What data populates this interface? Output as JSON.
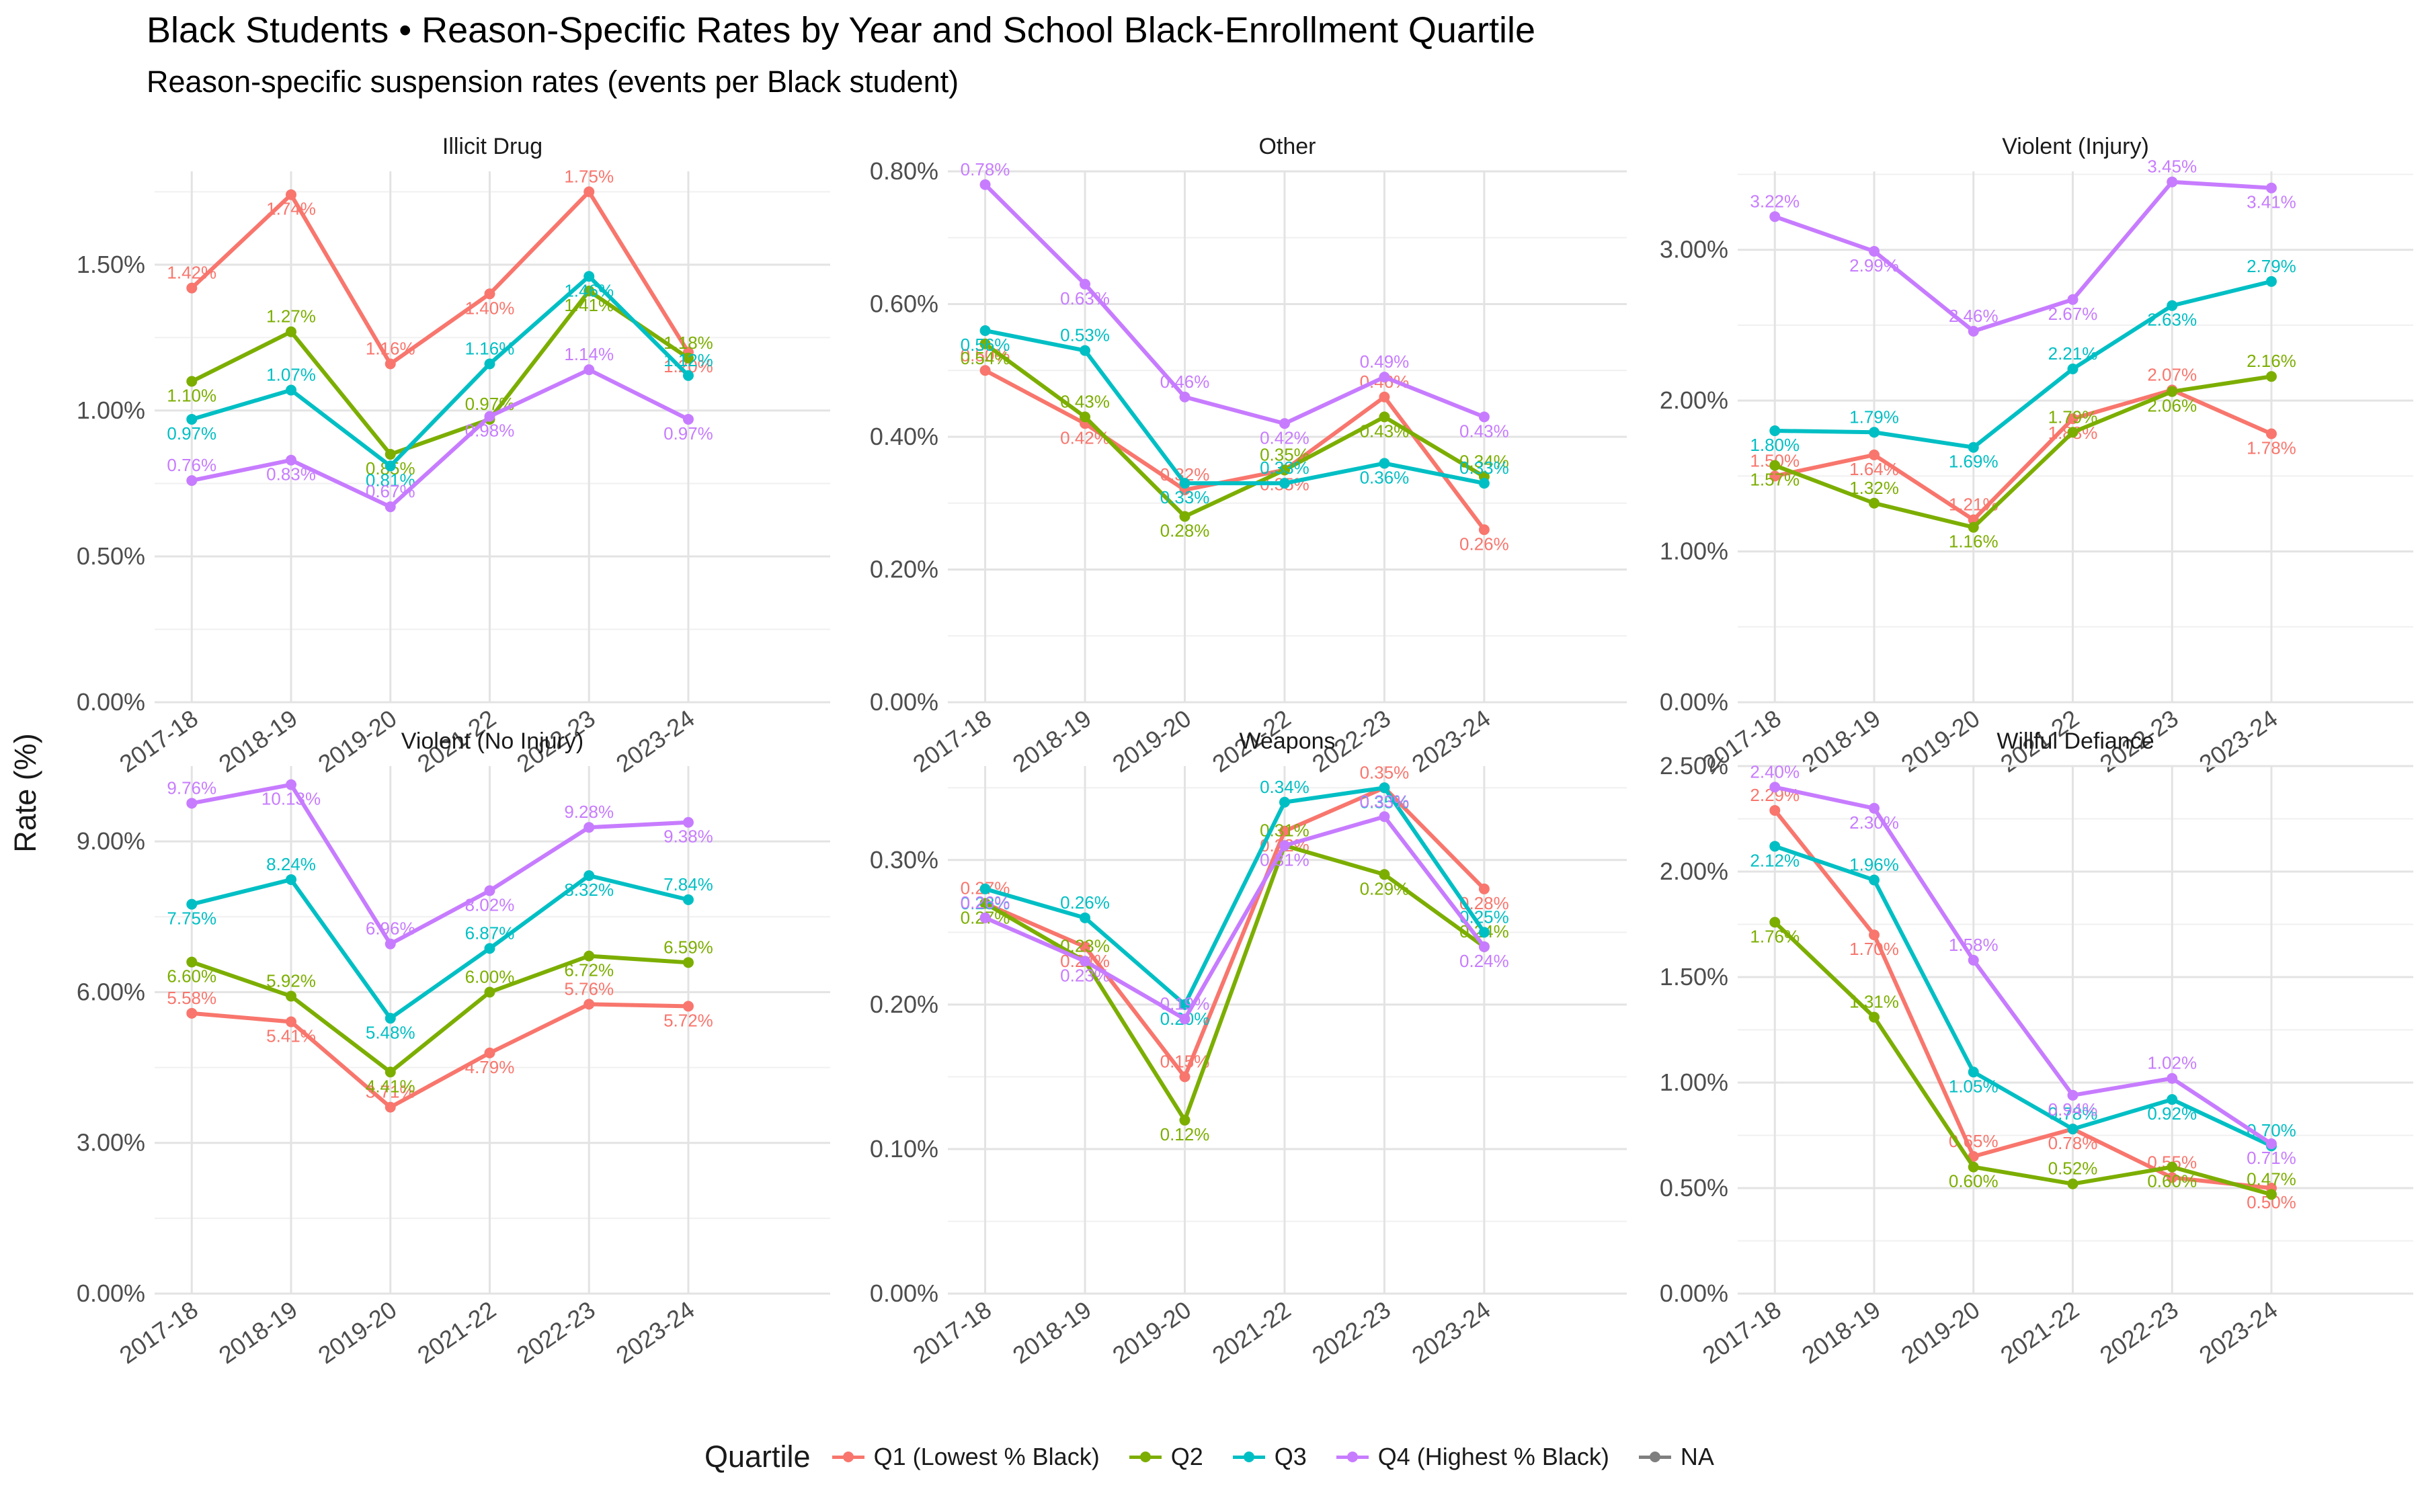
{
  "title": "Black Students • Reason-Specific Rates by Year and School Black-Enrollment Quartile",
  "subtitle": "Reason-specific suspension rates (events per Black student)",
  "chart_data": {
    "type": "line",
    "ylabel": "Rate (%)",
    "legend_title": "Quartile",
    "legend_position": "bottom",
    "grid": true,
    "categories": [
      "2017-18",
      "2018-19",
      "2019-20",
      "2021-22",
      "2022-23",
      "2023-24"
    ],
    "series_meta": [
      {
        "name": "Q1 (Lowest % Black)",
        "color": "#F8766D"
      },
      {
        "name": "Q2",
        "color": "#7CAE00"
      },
      {
        "name": "Q3",
        "color": "#00BFC4"
      },
      {
        "name": "Q4 (Highest % Black)",
        "color": "#C77CFF"
      },
      {
        "name": "NA",
        "color": "#7F7F7F"
      }
    ],
    "panels": [
      {
        "title": "Illicit Drug",
        "ylim": [
          0,
          1.82
        ],
        "yticks": [
          0,
          0.5,
          1.0,
          1.5
        ],
        "yticklabels": [
          "0.00%",
          "0.50%",
          "1.00%",
          "1.50%"
        ],
        "series": [
          {
            "name": "Q1 (Lowest % Black)",
            "values": [
              1.42,
              1.74,
              1.16,
              1.4,
              1.75,
              1.2
            ],
            "labels": [
              "1.42%",
              "1.74%",
              "1.16%",
              "1.40%",
              "1.75%",
              "1.20%"
            ]
          },
          {
            "name": "Q2",
            "values": [
              1.1,
              1.27,
              0.85,
              0.97,
              1.41,
              1.18
            ],
            "labels": [
              "1.10%",
              "1.27%",
              "0.85%",
              "0.97%",
              "1.41%",
              "1.18%"
            ]
          },
          {
            "name": "Q3",
            "values": [
              0.97,
              1.07,
              0.81,
              1.16,
              1.46,
              1.12
            ],
            "labels": [
              "0.97%",
              "1.07%",
              "0.81%",
              "1.16%",
              "1.46%",
              "1.12%"
            ]
          },
          {
            "name": "Q4 (Highest % Black)",
            "values": [
              0.76,
              0.83,
              0.67,
              0.98,
              1.14,
              0.97
            ],
            "labels": [
              "0.76%",
              "0.83%",
              "0.67%",
              "0.98%",
              "1.14%",
              "0.97%"
            ]
          }
        ]
      },
      {
        "title": "Other",
        "ylim": [
          0,
          0.8
        ],
        "yticks": [
          0,
          0.2,
          0.4,
          0.6,
          0.8
        ],
        "yticklabels": [
          "0.00%",
          "0.20%",
          "0.40%",
          "0.60%",
          "0.80%"
        ],
        "series": [
          {
            "name": "Q1 (Lowest % Black)",
            "values": [
              0.5,
              0.42,
              0.32,
              0.35,
              0.46,
              0.26
            ],
            "labels": [
              "0.50%",
              "0.42%",
              "0.32%",
              "0.35%",
              "0.46%",
              "0.26%"
            ]
          },
          {
            "name": "Q2",
            "values": [
              0.54,
              0.43,
              0.28,
              0.35,
              0.43,
              0.34
            ],
            "labels": [
              "0.54%",
              "0.43%",
              "0.28%",
              "0.35%",
              "0.43%",
              "0.34%"
            ]
          },
          {
            "name": "Q3",
            "values": [
              0.56,
              0.53,
              0.33,
              0.33,
              0.36,
              0.33
            ],
            "labels": [
              "0.56%",
              "0.53%",
              "0.33%",
              "0.33%",
              "0.36%",
              "0.33%"
            ]
          },
          {
            "name": "Q4 (Highest % Black)",
            "values": [
              0.78,
              0.63,
              0.46,
              0.42,
              0.49,
              0.43
            ],
            "labels": [
              "0.78%",
              "0.63%",
              "0.46%",
              "0.42%",
              "0.49%",
              "0.43%"
            ]
          }
        ]
      },
      {
        "title": "Violent (Injury)",
        "ylim": [
          0,
          3.52
        ],
        "yticks": [
          0,
          1.0,
          2.0,
          3.0
        ],
        "yticklabels": [
          "0.00%",
          "1.00%",
          "2.00%",
          "3.00%"
        ],
        "series": [
          {
            "name": "Q1 (Lowest % Black)",
            "values": [
              1.5,
              1.64,
              1.21,
              1.88,
              2.07,
              1.78
            ],
            "labels": [
              "1.50%",
              "1.64%",
              "1.21%",
              "1.88%",
              "2.07%",
              "1.78%"
            ]
          },
          {
            "name": "Q2",
            "values": [
              1.57,
              1.32,
              1.16,
              1.79,
              2.06,
              2.16
            ],
            "labels": [
              "1.57%",
              "1.32%",
              "1.16%",
              "1.79%",
              "2.06%",
              "2.16%"
            ]
          },
          {
            "name": "Q3",
            "values": [
              1.8,
              1.79,
              1.69,
              2.21,
              2.63,
              2.79
            ],
            "labels": [
              "1.80%",
              "1.79%",
              "1.69%",
              "2.21%",
              "2.63%",
              "2.79%"
            ]
          },
          {
            "name": "Q4 (Highest % Black)",
            "values": [
              3.22,
              2.99,
              2.46,
              2.67,
              3.45,
              3.41
            ],
            "labels": [
              "3.22%",
              "2.99%",
              "2.46%",
              "2.67%",
              "3.45%",
              "3.41%"
            ]
          }
        ]
      },
      {
        "title": "Violent (No Injury)",
        "ylim": [
          0,
          10.5
        ],
        "yticks": [
          0,
          3,
          6,
          9
        ],
        "yticklabels": [
          "0.00%",
          "3.00%",
          "6.00%",
          "9.00%"
        ],
        "series": [
          {
            "name": "Q1 (Lowest % Black)",
            "values": [
              5.58,
              5.41,
              3.71,
              4.79,
              5.76,
              5.72
            ],
            "labels": [
              "5.58%",
              "5.41%",
              "3.71%",
              "4.79%",
              "5.76%",
              "5.72%"
            ]
          },
          {
            "name": "Q2",
            "values": [
              6.6,
              5.92,
              4.41,
              6.0,
              6.72,
              6.59
            ],
            "labels": [
              "6.60%",
              "5.92%",
              "4.41%",
              "6.00%",
              "6.72%",
              "6.59%"
            ]
          },
          {
            "name": "Q3",
            "values": [
              7.75,
              8.24,
              5.48,
              6.87,
              8.32,
              7.84
            ],
            "labels": [
              "7.75%",
              "8.24%",
              "5.48%",
              "6.87%",
              "8.32%",
              "7.84%"
            ]
          },
          {
            "name": "Q4 (Highest % Black)",
            "values": [
              9.76,
              10.13,
              6.96,
              8.02,
              9.28,
              9.38
            ],
            "labels": [
              "9.76%",
              "10.13%",
              "6.96%",
              "8.02%",
              "9.28%",
              "9.38%"
            ]
          }
        ]
      },
      {
        "title": "Weapons",
        "ylim": [
          0,
          0.365
        ],
        "yticks": [
          0,
          0.1,
          0.2,
          0.3
        ],
        "yticklabels": [
          "0.00%",
          "0.10%",
          "0.20%",
          "0.30%"
        ],
        "series": [
          {
            "name": "Q1 (Lowest % Black)",
            "values": [
              0.27,
              0.24,
              0.15,
              0.32,
              0.35,
              0.28
            ],
            "labels": [
              "0.27%",
              "0.24%",
              "0.15%",
              "0.32%",
              "0.35%",
              "0.28%"
            ]
          },
          {
            "name": "Q2",
            "values": [
              0.27,
              0.23,
              0.12,
              0.31,
              0.29,
              0.24
            ],
            "labels": [
              "0.27%",
              "0.23%",
              "0.12%",
              "0.31%",
              "0.29%",
              "0.24%"
            ]
          },
          {
            "name": "Q3",
            "values": [
              0.28,
              0.26,
              0.2,
              0.34,
              0.35,
              0.25
            ],
            "labels": [
              "0.28%",
              "0.26%",
              "0.20%",
              "0.34%",
              "0.35%",
              "0.25%"
            ]
          },
          {
            "name": "Q4 (Highest % Black)",
            "values": [
              0.26,
              0.23,
              0.19,
              0.31,
              0.33,
              0.24
            ],
            "labels": [
              "0.26%",
              "0.23%",
              "0.19%",
              "0.31%",
              "0.33%",
              "0.24%"
            ]
          }
        ]
      },
      {
        "title": "Willful Defiance",
        "ylim": [
          0,
          2.5
        ],
        "yticks": [
          0,
          0.5,
          1.0,
          1.5,
          2.0,
          2.5
        ],
        "yticklabels": [
          "0.00%",
          "0.50%",
          "1.00%",
          "1.50%",
          "2.00%",
          "2.50%"
        ],
        "series": [
          {
            "name": "Q1 (Lowest % Black)",
            "values": [
              2.29,
              1.7,
              0.65,
              0.78,
              0.55,
              0.5
            ],
            "labels": [
              "2.29%",
              "1.70%",
              "0.65%",
              "0.78%",
              "0.55%",
              "0.50%"
            ]
          },
          {
            "name": "Q2",
            "values": [
              1.76,
              1.31,
              0.6,
              0.52,
              0.6,
              0.47
            ],
            "labels": [
              "1.76%",
              "1.31%",
              "0.60%",
              "0.52%",
              "0.60%",
              "0.47%"
            ]
          },
          {
            "name": "Q3",
            "values": [
              2.12,
              1.96,
              1.05,
              0.78,
              0.92,
              0.7
            ],
            "labels": [
              "2.12%",
              "1.96%",
              "1.05%",
              "0.78%",
              "0.92%",
              "0.70%"
            ]
          },
          {
            "name": "Q4 (Highest % Black)",
            "values": [
              2.4,
              2.3,
              1.58,
              0.94,
              1.02,
              0.71
            ],
            "labels": [
              "2.40%",
              "2.30%",
              "1.58%",
              "0.94%",
              "1.02%",
              "0.71%"
            ]
          }
        ]
      }
    ]
  }
}
